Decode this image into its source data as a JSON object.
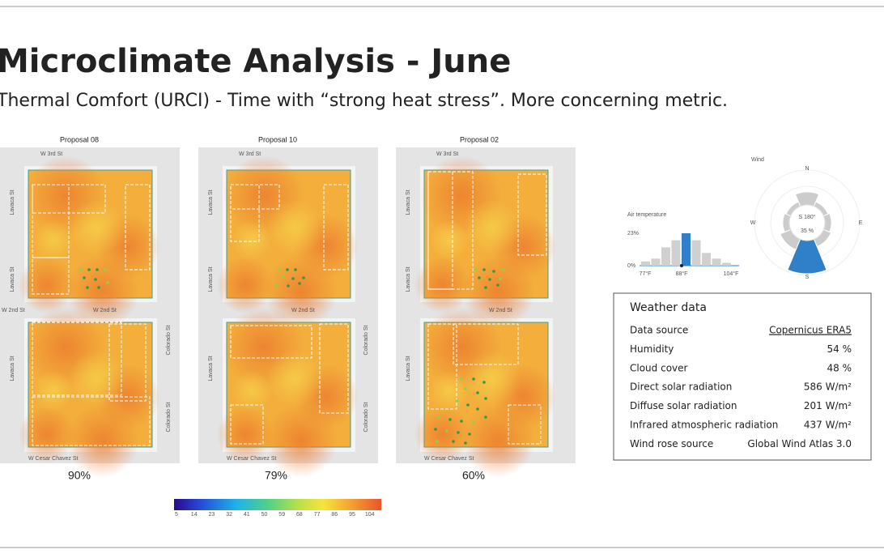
{
  "title": "Microclimate Analysis - June",
  "subtitle": "Thermal Comfort (URCI) - Time with “strong heat stress”. More concerning metric.",
  "proposals": [
    {
      "name": "Proposal 08",
      "result": "90%"
    },
    {
      "name": "Proposal 10",
      "result": "79%"
    },
    {
      "name": "Proposal 02",
      "result": "60%"
    }
  ],
  "streets": {
    "top": "W 3rd St",
    "middle": "W 2nd St",
    "bottom": "W Cesar Chavez St",
    "west": "Lavaca St",
    "east": "Colorado St"
  },
  "legend": {
    "ticks": [
      "5",
      "14",
      "23",
      "32",
      "41",
      "50",
      "59",
      "68",
      "77",
      "86",
      "95",
      "104"
    ]
  },
  "air_temperature": {
    "title": "Air temperature",
    "y_labels": [
      "23%",
      "0%"
    ],
    "x_labels": [
      "77°F",
      "88°F",
      "104°F"
    ],
    "bars": [
      3,
      5,
      13,
      18,
      23,
      18,
      9,
      5,
      2
    ],
    "selected_bar": 4,
    "color": "#d0d0d0",
    "selected_color": "#2f7fc9"
  },
  "wind": {
    "title": "Wind",
    "directions": [
      "N",
      "E",
      "S",
      "W"
    ],
    "direction": "S 180°",
    "frequency": "35 %"
  },
  "weather": {
    "title": "Weather data",
    "rows": [
      [
        "Data source",
        "Copernicus ERA5"
      ],
      [
        "Humidity",
        "54 %"
      ],
      [
        "Cloud cover",
        "48 %"
      ],
      [
        "Direct solar radiation",
        "586 W/m²"
      ],
      [
        "Diffuse solar radiation",
        "201 W/m²"
      ],
      [
        "Infrared atmospheric radiation",
        "437 W/m²"
      ],
      [
        "Wind rose source",
        "Global Wind Atlas 3.0"
      ]
    ]
  }
}
